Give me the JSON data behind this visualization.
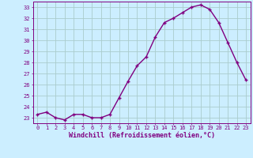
{
  "x": [
    0,
    1,
    2,
    3,
    4,
    5,
    6,
    7,
    8,
    9,
    10,
    11,
    12,
    13,
    14,
    15,
    16,
    17,
    18,
    19,
    20,
    21,
    22,
    23
  ],
  "y": [
    23.3,
    23.5,
    23.0,
    22.8,
    23.3,
    23.3,
    23.0,
    23.0,
    23.3,
    24.8,
    26.3,
    27.7,
    28.5,
    30.3,
    31.6,
    32.0,
    32.5,
    33.0,
    33.2,
    32.8,
    31.6,
    29.8,
    28.0,
    26.4
  ],
  "line_color": "#800080",
  "marker": "+",
  "bg_color": "#cceeff",
  "grid_color": "#aacccc",
  "ylabel_ticks": [
    23,
    24,
    25,
    26,
    27,
    28,
    29,
    30,
    31,
    32,
    33
  ],
  "ylim": [
    22.5,
    33.5
  ],
  "xlim": [
    -0.5,
    23.5
  ],
  "xlabel": "Windchill (Refroidissement éolien,°C)",
  "xlabel_color": "#800080",
  "tick_color": "#800080",
  "font": "monospace",
  "tick_fontsize": 5.0,
  "xlabel_fontsize": 6.0
}
